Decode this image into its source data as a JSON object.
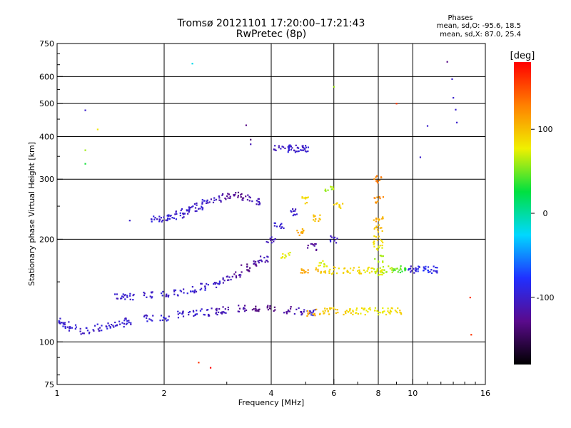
{
  "chart_data": {
    "type": "scatter",
    "title": "Tromsø 20121101 17:20:00–17:21:43",
    "subtitle": "RwPretec (8p)",
    "xlabel": "Frequency [MHz]",
    "ylabel": "Stationary phase Virtual Height [km]",
    "x_scale": "log",
    "y_scale": "log",
    "xlim": [
      1,
      16
    ],
    "ylim": [
      75,
      750
    ],
    "x_ticks": [
      1,
      2,
      4,
      6,
      8,
      10,
      16
    ],
    "y_ticks": [
      75,
      100,
      200,
      300,
      400,
      500,
      600,
      750
    ],
    "grid": true,
    "colorbar": {
      "label": "[deg]",
      "range": [
        -180,
        180
      ],
      "ticks": [
        100,
        0,
        -100
      ],
      "colormap": [
        "#000000",
        "#5a0a8c",
        "#2030ff",
        "#00d8ff",
        "#00e040",
        "#f0f000",
        "#ff8000",
        "#ff0000"
      ]
    },
    "phases": {
      "title": "Phases",
      "o_text": "mean, sd,O: -95.6, 18.5",
      "x_text": "mean, sd,X:  87.0, 25.4"
    },
    "trace_groups": [
      {
        "name": "E/F low trace",
        "x": [
          1.0,
          1.05,
          1.1,
          1.2,
          1.3,
          1.4,
          1.5,
          1.6,
          1.8,
          2.0,
          2.2,
          2.4,
          2.6,
          2.8,
          3.0,
          3.3,
          3.6,
          4.0,
          4.4,
          4.8,
          5.2
        ],
        "y": [
          115,
          112,
          110,
          108,
          110,
          112,
          113,
          115,
          117,
          118,
          120,
          121,
          122,
          123,
          124,
          125,
          125,
          125,
          124,
          123,
          122
        ],
        "phase": [
          -100,
          -100,
          -100,
          -100,
          -100,
          -100,
          -100,
          -100,
          -100,
          -100,
          -100,
          -100,
          -100,
          -110,
          -110,
          -120,
          -130,
          -130,
          -120,
          -110,
          -100
        ]
      },
      {
        "name": "X low trace",
        "x": [
          5.2,
          5.6,
          6.0,
          6.5,
          7.0,
          7.5,
          8.0,
          8.5,
          9.0
        ],
        "y": [
          122,
          123,
          123,
          123,
          123,
          123,
          123,
          123,
          123
        ],
        "phase": [
          110,
          100,
          95,
          90,
          85,
          80,
          80,
          85,
          90
        ]
      },
      {
        "name": "Middle trace",
        "x": [
          1.5,
          1.6,
          1.8,
          2.0,
          2.2,
          2.4,
          2.6,
          2.8,
          3.0,
          3.2,
          3.4,
          3.6,
          3.8
        ],
        "y": [
          135,
          136,
          137,
          138,
          140,
          142,
          145,
          148,
          152,
          158,
          165,
          170,
          175
        ],
        "phase": [
          -100,
          -100,
          -100,
          -100,
          -100,
          -100,
          -100,
          -100,
          -110,
          -120,
          -130,
          -120,
          -110
        ]
      },
      {
        "name": "F2 trace",
        "x": [
          1.9,
          2.0,
          2.1,
          2.2,
          2.3,
          2.4,
          2.5,
          2.6,
          2.8,
          3.0,
          3.2,
          3.4,
          3.6
        ],
        "y": [
          228,
          230,
          233,
          236,
          240,
          245,
          250,
          255,
          262,
          268,
          270,
          265,
          258
        ],
        "phase": [
          -100,
          -100,
          -100,
          -100,
          -100,
          -100,
          -100,
          -100,
          -110,
          -120,
          -130,
          -120,
          -110
        ]
      },
      {
        "name": "Upper F trace",
        "x": [
          4.2,
          4.4,
          4.6,
          4.8,
          5.0
        ],
        "y": [
          368,
          369,
          369,
          368,
          368
        ],
        "phase": [
          -110,
          -100,
          -100,
          -100,
          -100
        ]
      },
      {
        "name": "Dense spread 4-6 MHz",
        "x": [
          4.0,
          4.2,
          4.4,
          4.6,
          4.8,
          5.0,
          5.2,
          5.4,
          5.6,
          5.8,
          6.0,
          6.2
        ],
        "y": [
          200,
          220,
          180,
          240,
          210,
          260,
          190,
          230,
          170,
          280,
          200,
          250
        ],
        "phase": [
          -110,
          -100,
          80,
          -100,
          110,
          90,
          -120,
          100,
          70,
          60,
          -100,
          90
        ]
      },
      {
        "name": "160 km band",
        "x": [
          5.0,
          5.5,
          6.0,
          6.5,
          7.0,
          7.5,
          8.0,
          8.5,
          9.0,
          9.5,
          10.0,
          10.5,
          11.0,
          11.5
        ],
        "y": [
          160,
          161,
          162,
          162,
          162,
          163,
          163,
          163,
          163,
          163,
          163,
          163,
          163,
          163
        ],
        "phase": [
          110,
          100,
          90,
          90,
          85,
          80,
          70,
          60,
          50,
          40,
          -100,
          -90,
          -80,
          -90
        ]
      },
      {
        "name": "8 MHz column",
        "x": [
          8.0,
          8.0,
          8.0,
          8.0,
          8.0,
          8.0,
          8.0,
          8.0
        ],
        "y": [
          160,
          175,
          190,
          200,
          215,
          230,
          260,
          300
        ],
        "phase": [
          70,
          60,
          80,
          90,
          100,
          110,
          120,
          130
        ]
      },
      {
        "name": "Scattered points",
        "x": [
          1.2,
          1.2,
          1.2,
          1.3,
          1.6,
          2.4,
          2.5,
          2.7,
          3.4,
          3.5,
          3.5,
          6.0,
          9.0,
          10.5,
          11.0,
          12.5,
          12.9,
          13.0,
          13.2,
          13.3,
          14.5,
          14.6
        ],
        "y": [
          478,
          365,
          333,
          420,
          227,
          655,
          87,
          84,
          432,
          392,
          380,
          560,
          500,
          348,
          430,
          663,
          590,
          520,
          480,
          440,
          135,
          105
        ],
        "phase": [
          -100,
          60,
          30,
          80,
          -100,
          -20,
          160,
          180,
          -130,
          -140,
          -110,
          60,
          160,
          -100,
          -100,
          -130,
          -100,
          -100,
          -100,
          -100,
          160,
          160
        ]
      }
    ]
  }
}
